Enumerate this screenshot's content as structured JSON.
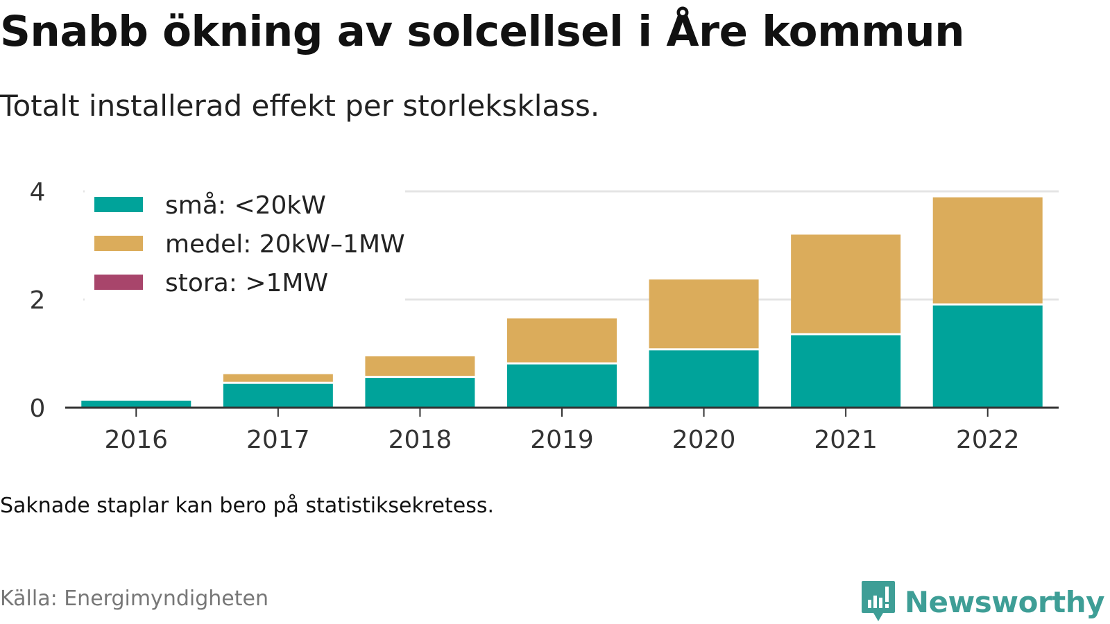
{
  "title": "Snabb ökning av solcellsel i Åre kommun",
  "subtitle": "Totalt installerad effekt per storleksklass.",
  "note": "Saknade staplar kan bero på statistiksekretess.",
  "source": "Källa: Energimyndigheten",
  "brand": {
    "name": "Newsworthy",
    "icon": "newsworthy-logo-icon",
    "color": "#3e9e96"
  },
  "chart_data": {
    "type": "bar",
    "stacked": true,
    "categories": [
      "2016",
      "2017",
      "2018",
      "2019",
      "2020",
      "2021",
      "2022"
    ],
    "series": [
      {
        "name": "små: <20kW",
        "color": "#00a39a",
        "values": [
          0.13,
          0.44,
          0.55,
          0.8,
          1.06,
          1.34,
          1.89
        ]
      },
      {
        "name": "medel: 20kW–1MW",
        "color": "#dbac5b",
        "values": [
          0.0,
          0.18,
          0.4,
          0.85,
          1.31,
          1.86,
          2.0
        ]
      },
      {
        "name": "stora: >1MW",
        "color": "#a8456b",
        "values": [
          0,
          0,
          0,
          0,
          0,
          0,
          0
        ]
      }
    ],
    "yticks": [
      0,
      2,
      4
    ],
    "ylim": [
      0,
      4.15
    ],
    "grid": true,
    "legend": "top-left"
  }
}
